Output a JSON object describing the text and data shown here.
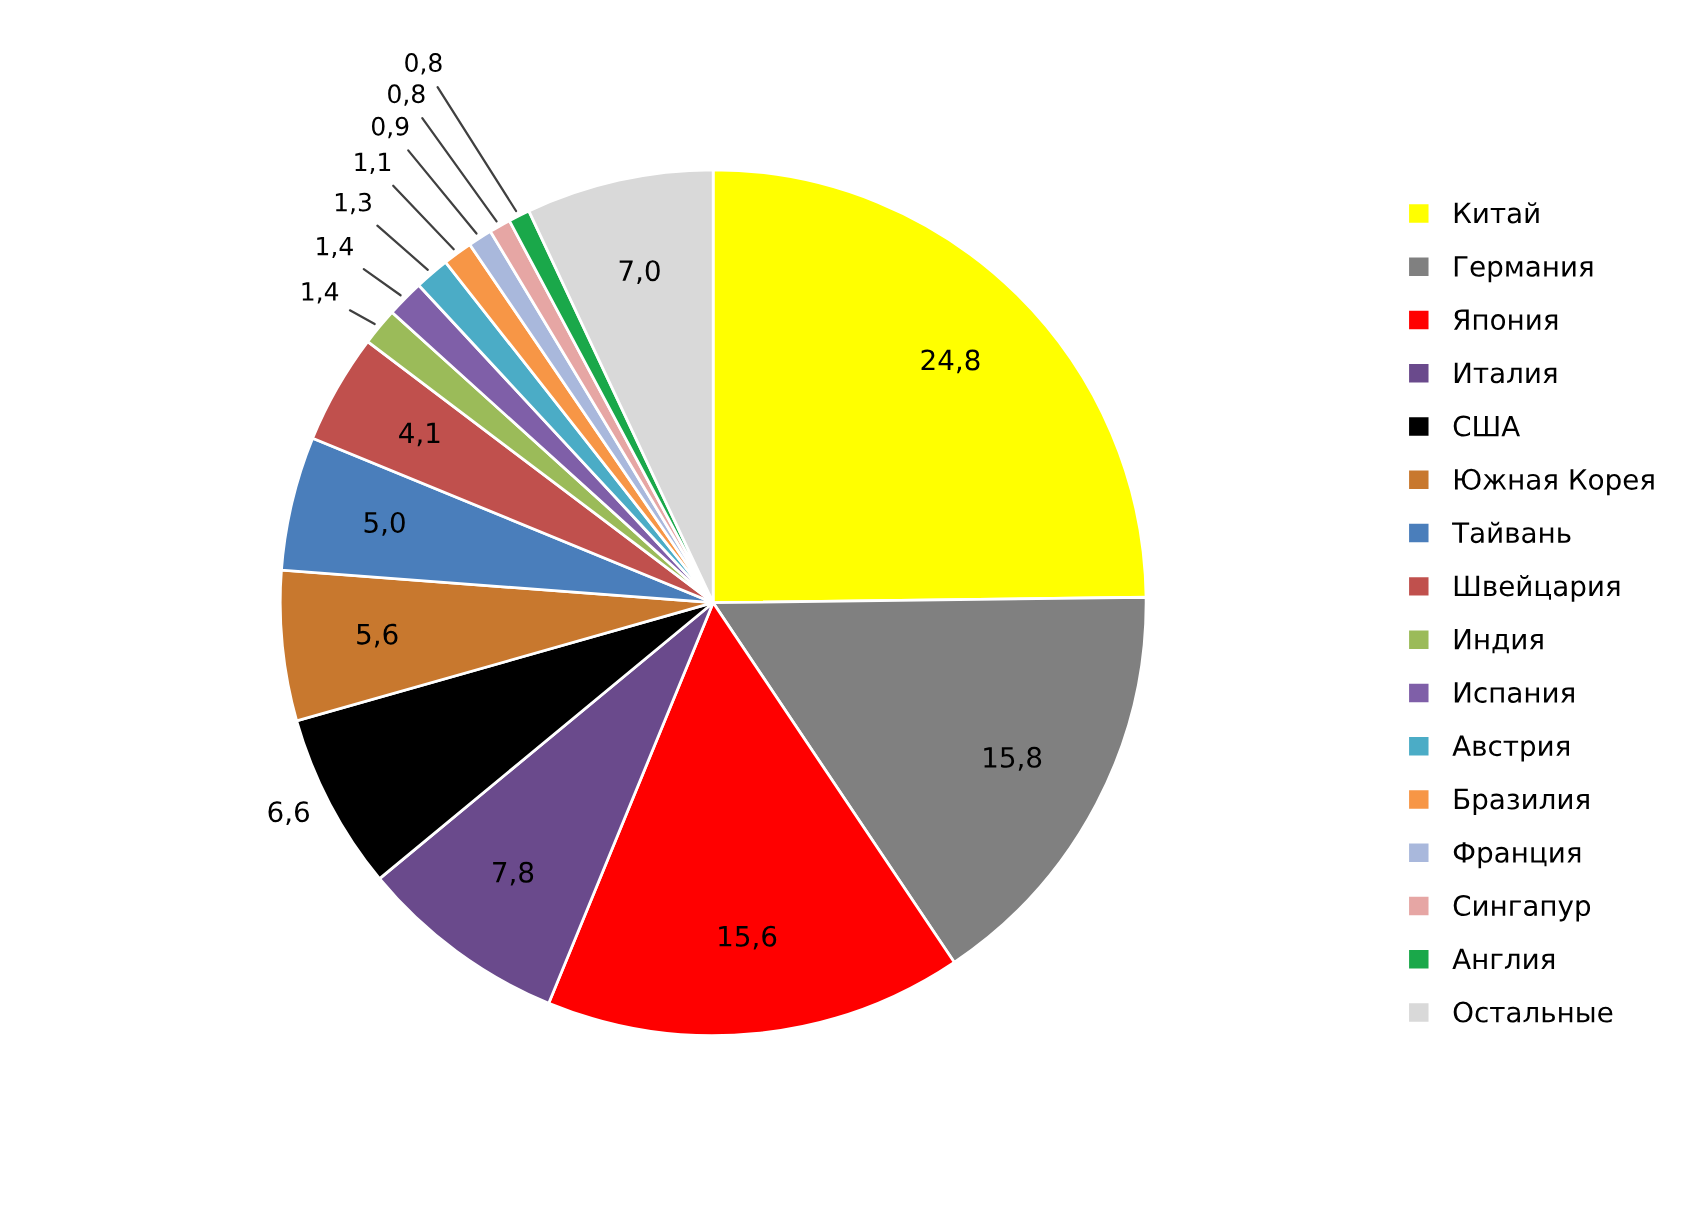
{
  "chart_data": {
    "type": "pie",
    "categories": [
      "Китай",
      "Германия",
      "Япония",
      "Италия",
      "США",
      "Южная Корея",
      "Тайвань",
      "Швейцария",
      "Индия",
      "Испания",
      "Австрия",
      "Бразилия",
      "Франция",
      "Сингапур",
      "Англия",
      "Остальные"
    ],
    "values": [
      24.8,
      15.8,
      15.6,
      7.8,
      6.6,
      5.6,
      5.0,
      4.1,
      1.4,
      1.4,
      1.3,
      1.1,
      0.9,
      0.8,
      0.8,
      7.0
    ],
    "value_labels": [
      "24,8",
      "15,8",
      "15,6",
      "7,8",
      "6,6",
      "5,6",
      "5,0",
      "4,1",
      "1,4",
      "1,4",
      "1,3",
      "1,1",
      "0,9",
      "0,8",
      "0,8",
      "7,0"
    ],
    "colors": [
      "#ffff00",
      "#808080",
      "#ff0000",
      "#6a4a8c",
      "#000000",
      "#c8782e",
      "#4a7ebb",
      "#c0504d",
      "#9bbb59",
      "#7f5fa8",
      "#4bacc6",
      "#f79646",
      "#a9b8dc",
      "#e6a6a4",
      "#1aa84a",
      "#d9d9d9"
    ],
    "legend": "right"
  }
}
